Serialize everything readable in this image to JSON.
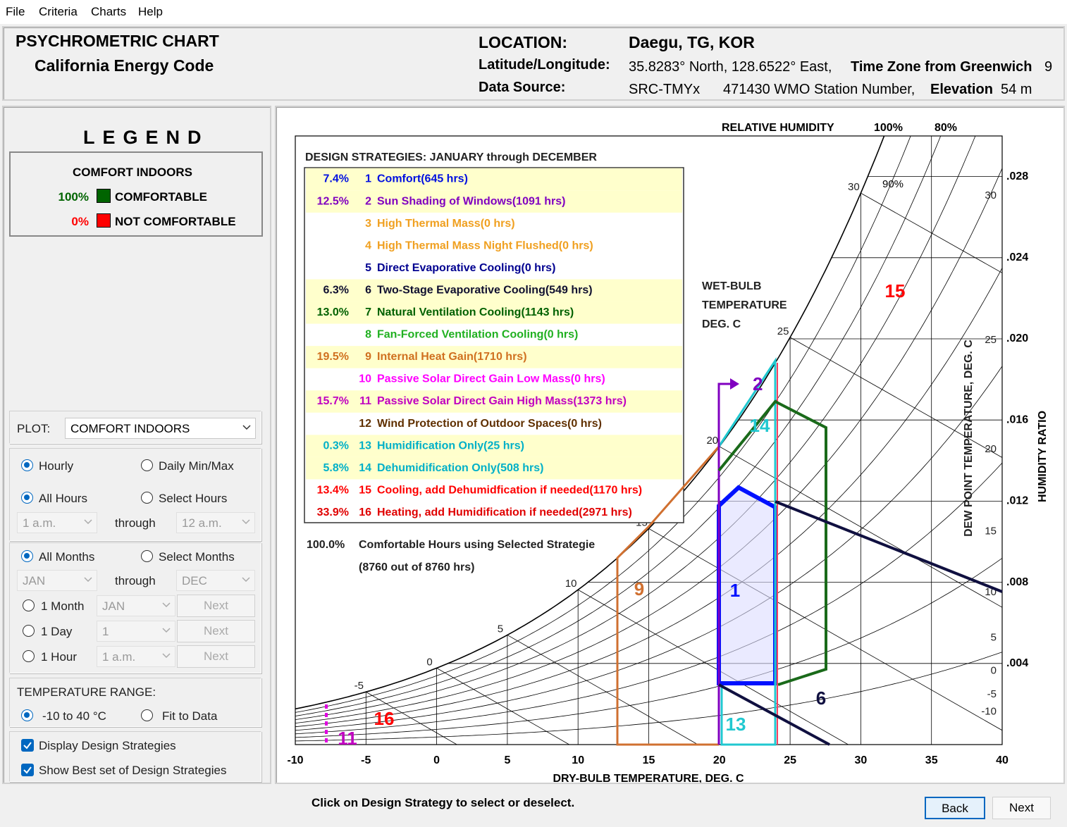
{
  "menu": [
    "File",
    "Criteria",
    "Charts",
    "Help"
  ],
  "header": {
    "title": "PSYCHROMETRIC CHART",
    "subtitle": "California Energy Code",
    "location_label": "LOCATION:",
    "location": "Daegu, TG, KOR",
    "latlon_label": "Latitude/Longitude:",
    "latlon": "35.8283° North, 128.6522° East,",
    "timezone_label": "Time Zone from Greenwich",
    "timezone": "9",
    "source_label": "Data Source:",
    "source": "SRC-TMYx",
    "station": "471430 WMO Station Number,",
    "elevation_label": "Elevation",
    "elevation": "54 m"
  },
  "legend": {
    "title": "LEGEND",
    "heading": "COMFORT INDOORS",
    "items": [
      {
        "percent": "100%",
        "label": "COMFORTABLE",
        "color": "#006400"
      },
      {
        "percent": "0%",
        "label": "NOT COMFORTABLE",
        "color": "#ff0000"
      }
    ]
  },
  "controls": {
    "plot_label": "PLOT:",
    "plot_value": "COMFORT INDOORS",
    "mode": [
      "Hourly",
      "Daily Min/Max"
    ],
    "hours": [
      "All Hours",
      "Select Hours"
    ],
    "hour_range": [
      "1 a.m.",
      "through",
      "12 a.m."
    ],
    "months": [
      "All Months",
      "Select Months"
    ],
    "month_range": [
      "JAN",
      "through",
      "DEC"
    ],
    "single": [
      {
        "label": "1 Month",
        "value": "JAN",
        "button": "Next"
      },
      {
        "label": "1 Day",
        "value": "1",
        "button": "Next"
      },
      {
        "label": "1 Hour",
        "value": "1 a.m.",
        "button": "Next"
      }
    ],
    "temperature_label": "TEMPERATURE RANGE:",
    "temperature_options": [
      "-10 to 40 °C",
      "Fit to Data"
    ],
    "checkboxes": [
      "Display Design Strategies",
      "Show Best set of Design Strategies"
    ]
  },
  "chart": {
    "strategies_title": "DESIGN STRATEGIES:  JANUARY through DECEMBER",
    "strategies": [
      {
        "percent": "7.4%",
        "number": "1",
        "label": "Comfort(645 hrs)",
        "color": "#0010e0"
      },
      {
        "percent": "12.5%",
        "number": "2",
        "label": "Sun Shading of Windows(1091 hrs)",
        "color": "#8000c0"
      },
      {
        "number": "3",
        "label": "High Thermal Mass(0 hrs)",
        "color": "#f0a020"
      },
      {
        "number": "4",
        "label": "High Thermal Mass Night Flushed(0 hrs)",
        "color": "#f0a020"
      },
      {
        "number": "5",
        "label": "Direct Evaporative Cooling(0 hrs)",
        "color": "#000090"
      },
      {
        "percent": "6.3%",
        "number": "6",
        "label": "Two-Stage Evaporative Cooling(549 hrs)",
        "color": "#101030"
      },
      {
        "percent": "13.0%",
        "number": "7",
        "label": "Natural Ventilation Cooling(1143 hrs)",
        "color": "#006000"
      },
      {
        "number": "8",
        "label": "Fan-Forced Ventilation Cooling(0 hrs)",
        "color": "#20b020"
      },
      {
        "percent": "19.5%",
        "number": "9",
        "label": "Internal Heat Gain(1710 hrs)",
        "color": "#d07020"
      },
      {
        "number": "10",
        "label": "Passive Solar Direct Gain Low Mass(0 hrs)",
        "color": "#ff00ff"
      },
      {
        "percent": "15.7%",
        "number": "11",
        "label": "Passive Solar Direct Gain High Mass(1373 hrs)",
        "color": "#c000c0"
      },
      {
        "number": "12",
        "label": "Wind Protection of Outdoor Spaces(0 hrs)",
        "color": "#603000"
      },
      {
        "percent": "0.3%",
        "number": "13",
        "label": "Humidification Only(25 hrs)",
        "color": "#00b0c8"
      },
      {
        "percent": "5.8%",
        "number": "14",
        "label": "Dehumidification Only(508 hrs)",
        "color": "#00b0c8"
      },
      {
        "percent": "13.4%",
        "number": "15",
        "label": "Cooling, add Dehumidfication if needed(1170 hrs)",
        "color": "#ff0000"
      },
      {
        "percent": "33.9%",
        "number": "16",
        "label": "Heating, add Humidification if needed(2971 hrs)",
        "color": "#e00000"
      }
    ],
    "total_percent": "100.0%",
    "total_label": "Comfortable Hours using Selected Strategie",
    "total_hours": "(8760 out of 8760 hrs)",
    "x_axis": {
      "title": "DRY-BULB TEMPERATURE, DEG. C",
      "lim": [
        -10,
        40
      ],
      "ticks": [
        -10,
        -5,
        0,
        5,
        10,
        15,
        20,
        25,
        30,
        35,
        40
      ]
    },
    "humidity_ratio": {
      "title": "HUMIDITY RATIO",
      "lim": [
        0,
        0.03
      ],
      "ticks": [
        {
          "value": 0.004,
          "label": ".004"
        },
        {
          "value": 0.008,
          "label": ".008"
        },
        {
          "value": 0.012,
          "label": ".012"
        },
        {
          "value": 0.016,
          "label": ".016"
        },
        {
          "value": 0.02,
          "label": ".020"
        },
        {
          "value": 0.024,
          "label": ".024"
        },
        {
          "value": 0.028,
          "label": ".028"
        }
      ]
    },
    "dew_point": {
      "title": "DEW POINT TEMPERATURE, DEG. C",
      "ticks": [
        -10,
        -5,
        0,
        5,
        10,
        15,
        20,
        25,
        30
      ]
    },
    "wet_bulb": {
      "title": [
        "WET-BULB",
        "TEMPERATURE",
        "DEG. C"
      ],
      "ticks": [
        -5,
        0,
        5,
        10,
        15,
        20,
        25,
        30
      ]
    },
    "relative_humidity": {
      "title": "RELATIVE HUMIDITY",
      "labels": [
        "100%",
        "80%",
        "90%"
      ]
    },
    "zone_labels": [
      "2",
      "14",
      "15",
      "9",
      "1",
      "6",
      "13",
      "16",
      "11"
    ]
  },
  "footer": {
    "hint": "Click on Design Strategy to select or deselect.",
    "buttons": [
      "Back",
      "Next"
    ]
  }
}
